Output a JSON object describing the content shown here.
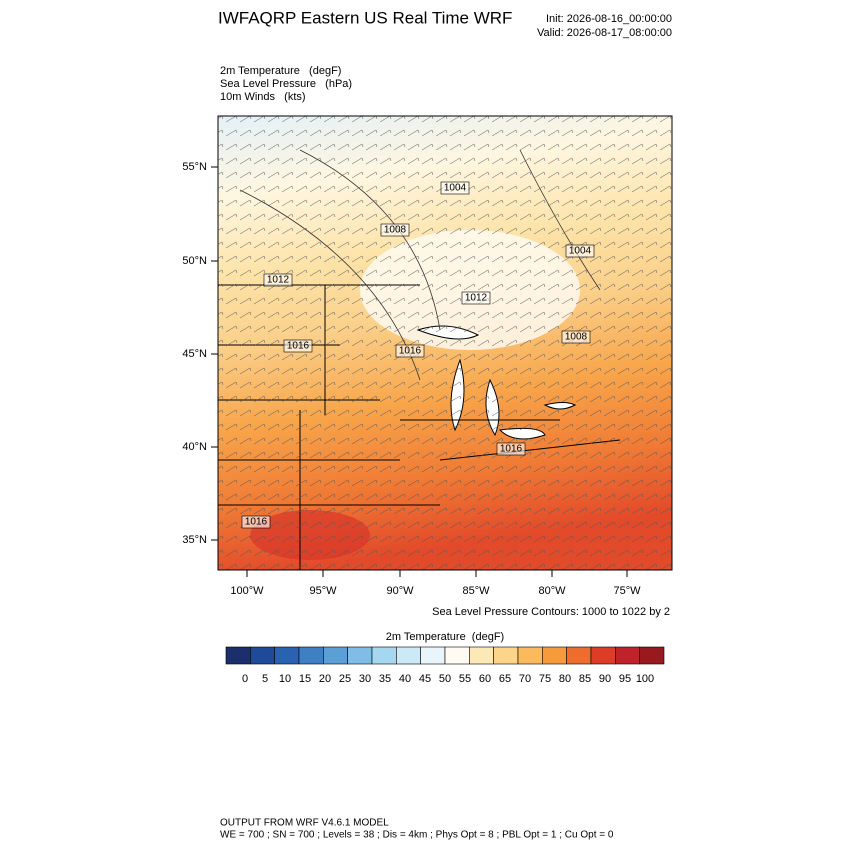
{
  "header": {
    "title": "IWFAQRP Eastern US Real Time WRF",
    "init": "Init: 2026-08-16_00:00:00",
    "valid": "Valid: 2026-08-17_08:00:00"
  },
  "fields": [
    "2m Temperature   (degF)",
    "Sea Level Pressure   (hPa)",
    "10m Winds   (kts)"
  ],
  "map": {
    "lat_labels": [
      "55°N",
      "50°N",
      "45°N",
      "40°N",
      "35°N"
    ],
    "lon_labels": [
      "100°W",
      "95°W",
      "90°W",
      "85°W",
      "80°W",
      "75°W"
    ],
    "contour_labels": [
      "1004",
      "1008",
      "1004",
      "1012",
      "1012",
      "1008",
      "1016",
      "1016",
      "1016",
      "1016"
    ],
    "note": "Sea Level Pressure Contours: 1000 to 1022 by 2"
  },
  "colorbar": {
    "title": "2m Temperature  (degF)",
    "colors": [
      "#1a2f6b",
      "#1f4a9a",
      "#2a62b2",
      "#3f7fc4",
      "#5b9fd6",
      "#80bde6",
      "#a6d7f1",
      "#cbe9f7",
      "#e8f5fb",
      "#fffaf2",
      "#fde9b8",
      "#fdd58a",
      "#fbba5b",
      "#f79a3c",
      "#ee6c2e",
      "#dd3d27",
      "#c0222a",
      "#981a1f"
    ],
    "labels": [
      0,
      5,
      10,
      15,
      20,
      25,
      30,
      35,
      40,
      45,
      50,
      55,
      60,
      65,
      70,
      75,
      80,
      85,
      90,
      95,
      100
    ]
  },
  "footer": [
    "OUTPUT FROM WRF V4.6.1 MODEL",
    "WE = 700 ; SN = 700 ; Levels = 38 ; Dis = 4km ; Phys Opt = 8 ; PBL Opt = 1 ; Cu Opt = 0"
  ]
}
